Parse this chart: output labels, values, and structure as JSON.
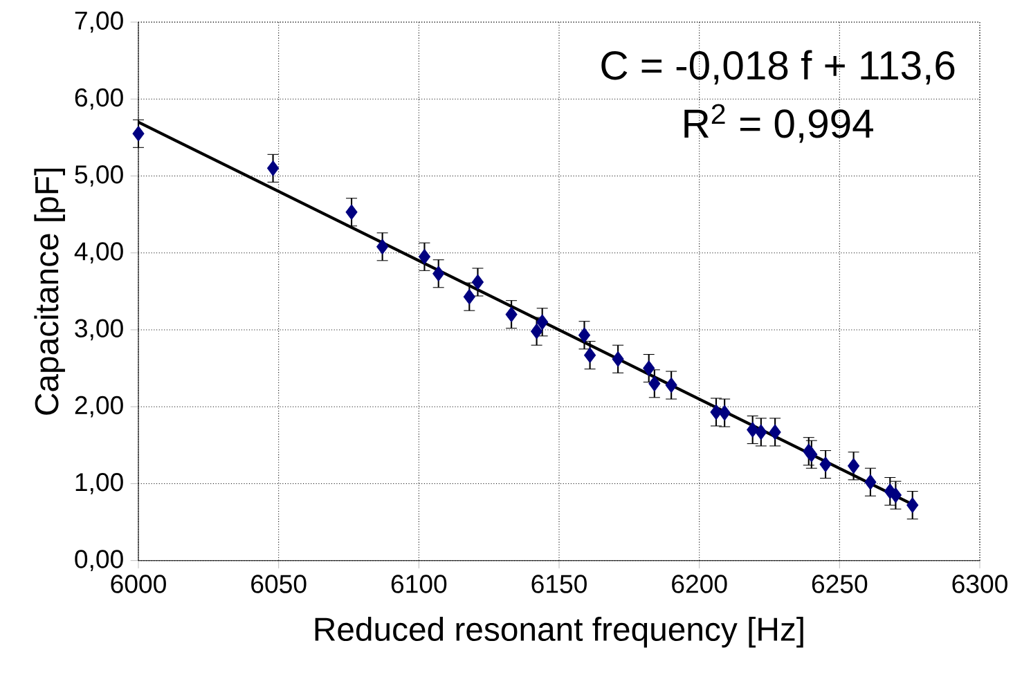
{
  "chart_data": {
    "type": "scatter",
    "xlabel": "Reduced resonant frequency [Hz]",
    "ylabel": "Capacitance [pF]",
    "xlim": [
      6000,
      6300
    ],
    "xticks": [
      6000,
      6050,
      6100,
      6150,
      6200,
      6250,
      6300
    ],
    "ylim": [
      0,
      7
    ],
    "yticks": [
      {
        "value": 0,
        "label": "0,00"
      },
      {
        "value": 1,
        "label": "1,00"
      },
      {
        "value": 2,
        "label": "2,00"
      },
      {
        "value": 3,
        "label": "3,00"
      },
      {
        "value": 4,
        "label": "4,00"
      },
      {
        "value": 5,
        "label": "5,00"
      },
      {
        "value": 6,
        "label": "6,00"
      },
      {
        "value": 7,
        "label": "7,00"
      }
    ],
    "grid": true,
    "annotations": [
      "C = -0,018 f + 113,6",
      "R$^{2}$ = 0,994"
    ],
    "series": [
      {
        "type": "scatter",
        "color": "#000080",
        "marker": "diamond",
        "x": [
          6000,
          6048,
          6076,
          6087,
          6102,
          6107,
          6118,
          6121,
          6133,
          6142,
          6144,
          6159,
          6161,
          6171,
          6182,
          6184,
          6190,
          6206,
          6209,
          6219,
          6222,
          6227,
          6239,
          6240,
          6245,
          6255,
          6261,
          6268,
          6270,
          6276
        ],
        "values": [
          5.55,
          5.1,
          4.53,
          4.08,
          3.95,
          3.73,
          3.43,
          3.62,
          3.2,
          2.98,
          3.1,
          2.93,
          2.67,
          2.62,
          2.5,
          2.3,
          2.28,
          1.93,
          1.92,
          1.7,
          1.67,
          1.67,
          1.42,
          1.38,
          1.25,
          1.23,
          1.02,
          0.9,
          0.85,
          0.72
        ],
        "errors": [
          0.18,
          0.18,
          0.18,
          0.18,
          0.18,
          0.18,
          0.18,
          0.18,
          0.18,
          0.18,
          0.18,
          0.18,
          0.18,
          0.18,
          0.18,
          0.18,
          0.18,
          0.18,
          0.18,
          0.18,
          0.18,
          0.18,
          0.18,
          0.18,
          0.18,
          0.18,
          0.18,
          0.18,
          0.18,
          0.18
        ]
      },
      {
        "type": "line",
        "color": "#000000",
        "marker": "none",
        "x": [
          6000,
          6276
        ],
        "values": [
          5.7,
          0.73
        ]
      }
    ]
  }
}
